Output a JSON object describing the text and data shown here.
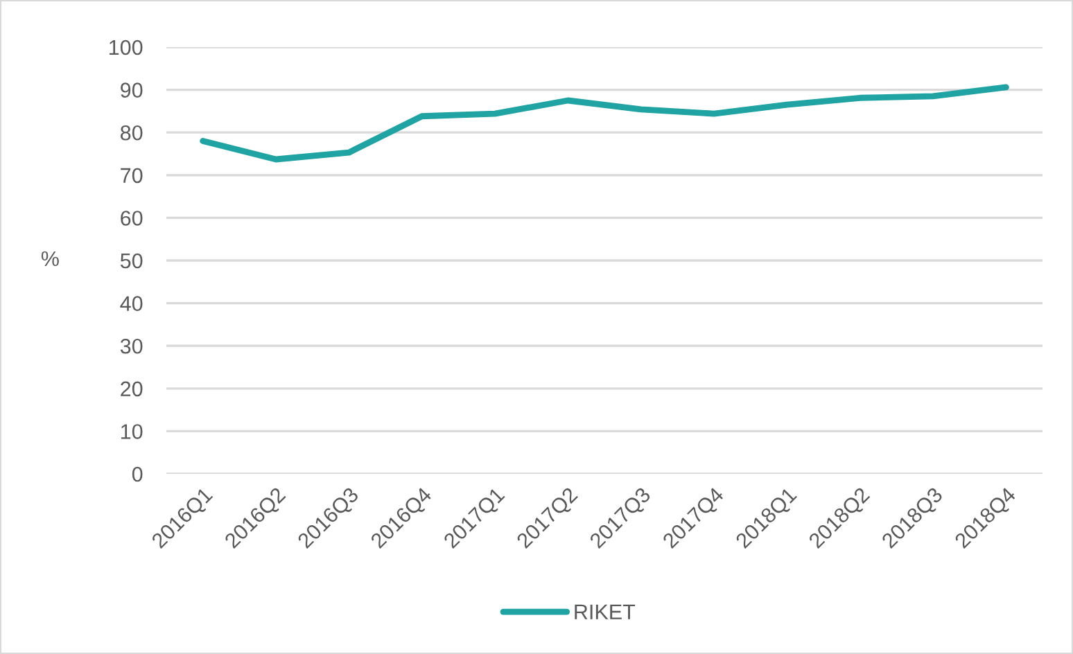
{
  "chart_data": {
    "type": "line",
    "ylabel": "%",
    "categories": [
      "2016Q1",
      "2016Q2",
      "2016Q3",
      "2016Q4",
      "2017Q1",
      "2017Q2",
      "2017Q3",
      "2017Q4",
      "2018Q1",
      "2018Q2",
      "2018Q3",
      "2018Q4"
    ],
    "series": [
      {
        "name": "RIKET",
        "color": "#1fa3a3",
        "values": [
          78.0,
          73.7,
          75.3,
          83.8,
          84.4,
          87.5,
          85.4,
          84.4,
          86.5,
          88.1,
          88.5,
          90.6
        ]
      }
    ],
    "ylim": [
      0,
      100
    ],
    "yticks": [
      0,
      10,
      20,
      30,
      40,
      50,
      60,
      70,
      80,
      90,
      100
    ],
    "grid": "y",
    "legend": "bottom",
    "marker": "none",
    "line_style": "solid"
  }
}
